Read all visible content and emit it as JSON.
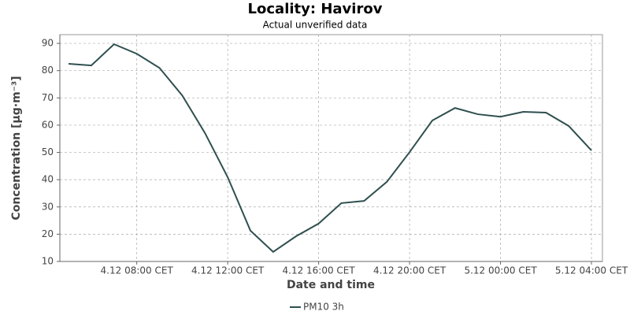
{
  "chart_data": {
    "type": "line",
    "title": "Locality: Havirov",
    "subtitle": "Actual unverified data",
    "x_label": "Date and time",
    "y_label": "Concentration [µg·m⁻³]",
    "x": [
      "4.12 05:00",
      "4.12 06:00",
      "4.12 07:00",
      "4.12 08:00",
      "4.12 09:00",
      "4.12 10:00",
      "4.12 11:00",
      "4.12 12:00",
      "4.12 13:00",
      "4.12 14:00",
      "4.12 15:00",
      "4.12 16:00",
      "4.12 17:00",
      "4.12 18:00",
      "4.12 19:00",
      "4.12 20:00",
      "4.12 21:00",
      "4.12 22:00",
      "4.12 23:00",
      "5.12 00:00",
      "5.12 01:00",
      "5.12 02:00",
      "5.12 03:00",
      "5.12 04:00"
    ],
    "series": [
      {
        "name": "PM10 3h",
        "color": "#2f4f4f",
        "values": [
          82.5,
          81.9,
          89.7,
          86.2,
          81.0,
          70.9,
          57.1,
          40.9,
          21.3,
          13.5,
          19.2,
          23.9,
          31.4,
          32.2,
          39.2,
          50.1,
          61.7,
          66.3,
          64.0,
          63.1,
          64.9,
          64.6,
          59.7,
          50.7
        ]
      }
    ],
    "xlim": [
      "4.12 04:37",
      "5.12 04:29"
    ],
    "xticks": [
      "4.12 08:00 CET",
      "4.12 12:00 CET",
      "4.12 16:00 CET",
      "4.12 20:00 CET",
      "5.12 00:00 CET",
      "5.12 04:00 CET"
    ],
    "ylim": [
      10,
      93.2
    ],
    "yticks": [
      10,
      20,
      30,
      40,
      50,
      60,
      70,
      80,
      90
    ],
    "grid": true,
    "legend": "bottom"
  }
}
